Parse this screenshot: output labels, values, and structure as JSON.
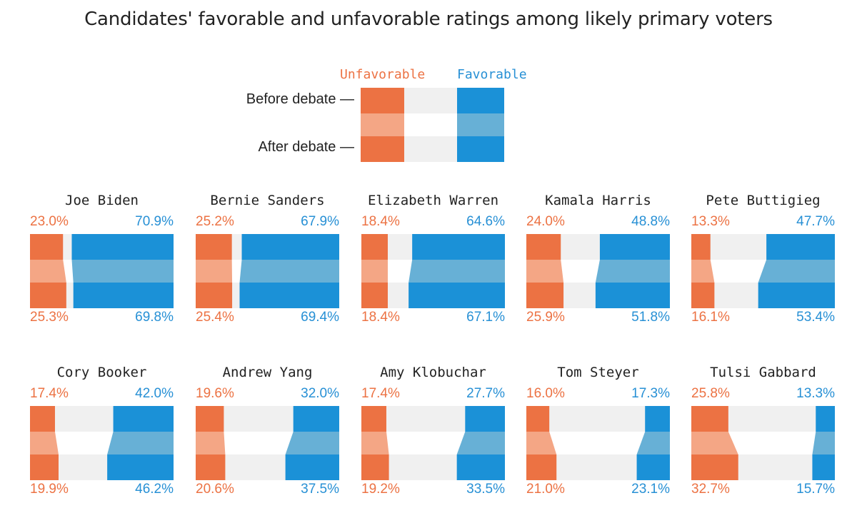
{
  "colors": {
    "unfavorable": "#ec7243",
    "unfavorable_light": "#f4a685",
    "favorable": "#1b91d7",
    "favorable_light": "#67b0d6",
    "background_bar": "#f0f0f0"
  },
  "chart_data": {
    "type": "bar",
    "title": "Candidates' favorable and unfavorable ratings among likely primary voters",
    "legend": {
      "unfavorable": "Unfavorable",
      "favorable": "Favorable",
      "before": "Before debate —",
      "after": "After debate —"
    },
    "series_order": [
      "unfavorable",
      "favorable"
    ],
    "candidates": [
      {
        "name": "Joe Biden",
        "before": {
          "unfavorable": "23.0%",
          "favorable": "70.9%"
        },
        "after": {
          "unfavorable": "25.3%",
          "favorable": "69.8%"
        },
        "values": {
          "before_unfav": 23.0,
          "before_fav": 70.9,
          "after_unfav": 25.3,
          "after_fav": 69.8
        }
      },
      {
        "name": "Bernie Sanders",
        "before": {
          "unfavorable": "25.2%",
          "favorable": "67.9%"
        },
        "after": {
          "unfavorable": "25.4%",
          "favorable": "69.4%"
        },
        "values": {
          "before_unfav": 25.2,
          "before_fav": 67.9,
          "after_unfav": 25.4,
          "after_fav": 69.4
        }
      },
      {
        "name": "Elizabeth Warren",
        "before": {
          "unfavorable": "18.4%",
          "favorable": "64.6%"
        },
        "after": {
          "unfavorable": "18.4%",
          "favorable": "67.1%"
        },
        "values": {
          "before_unfav": 18.4,
          "before_fav": 64.6,
          "after_unfav": 18.4,
          "after_fav": 67.1
        }
      },
      {
        "name": "Kamala Harris",
        "before": {
          "unfavorable": "24.0%",
          "favorable": "48.8%"
        },
        "after": {
          "unfavorable": "25.9%",
          "favorable": "51.8%"
        },
        "values": {
          "before_unfav": 24.0,
          "before_fav": 48.8,
          "after_unfav": 25.9,
          "after_fav": 51.8
        }
      },
      {
        "name": "Pete Buttigieg",
        "before": {
          "unfavorable": "13.3%",
          "favorable": "47.7%"
        },
        "after": {
          "unfavorable": "16.1%",
          "favorable": "53.4%"
        },
        "values": {
          "before_unfav": 13.3,
          "before_fav": 47.7,
          "after_unfav": 16.1,
          "after_fav": 53.4
        }
      },
      {
        "name": "Cory Booker",
        "before": {
          "unfavorable": "17.4%",
          "favorable": "42.0%"
        },
        "after": {
          "unfavorable": "19.9%",
          "favorable": "46.2%"
        },
        "values": {
          "before_unfav": 17.4,
          "before_fav": 42.0,
          "after_unfav": 19.9,
          "after_fav": 46.2
        }
      },
      {
        "name": "Andrew Yang",
        "before": {
          "unfavorable": "19.6%",
          "favorable": "32.0%"
        },
        "after": {
          "unfavorable": "20.6%",
          "favorable": "37.5%"
        },
        "values": {
          "before_unfav": 19.6,
          "before_fav": 32.0,
          "after_unfav": 20.6,
          "after_fav": 37.5
        }
      },
      {
        "name": "Amy Klobuchar",
        "before": {
          "unfavorable": "17.4%",
          "favorable": "27.7%"
        },
        "after": {
          "unfavorable": "19.2%",
          "favorable": "33.5%"
        },
        "values": {
          "before_unfav": 17.4,
          "before_fav": 27.7,
          "after_unfav": 19.2,
          "after_fav": 33.5
        }
      },
      {
        "name": "Tom Steyer",
        "before": {
          "unfavorable": "16.0%",
          "favorable": "17.3%"
        },
        "after": {
          "unfavorable": "21.0%",
          "favorable": "23.1%"
        },
        "values": {
          "before_unfav": 16.0,
          "before_fav": 17.3,
          "after_unfav": 21.0,
          "after_fav": 23.1
        }
      },
      {
        "name": "Tulsi Gabbard",
        "before": {
          "unfavorable": "25.8%",
          "favorable": "13.3%"
        },
        "after": {
          "unfavorable": "32.7%",
          "favorable": "15.7%"
        },
        "values": {
          "before_unfav": 25.8,
          "before_fav": 13.3,
          "after_unfav": 32.7,
          "after_fav": 15.7
        }
      }
    ]
  }
}
